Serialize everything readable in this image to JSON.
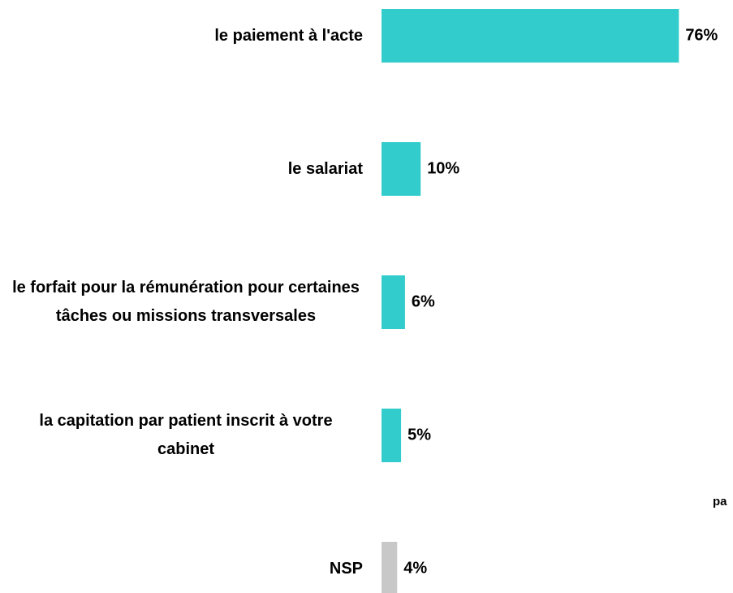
{
  "chart_data": {
    "type": "bar",
    "orientation": "horizontal",
    "categories": [
      "le paiement à l'acte",
      "le salariat",
      "le forfait pour la rémunération pour certaines tâches ou missions transversales",
      "la capitation par patient inscrit à votre cabinet",
      "NSP"
    ],
    "values": [
      76,
      10,
      6,
      5,
      4
    ],
    "value_labels": [
      "76%",
      "10%",
      "6%",
      "5%",
      "4%"
    ],
    "colors": [
      "#33cccc",
      "#33cccc",
      "#33cccc",
      "#33cccc",
      "#c8c8c8"
    ],
    "annotation": "pa"
  }
}
